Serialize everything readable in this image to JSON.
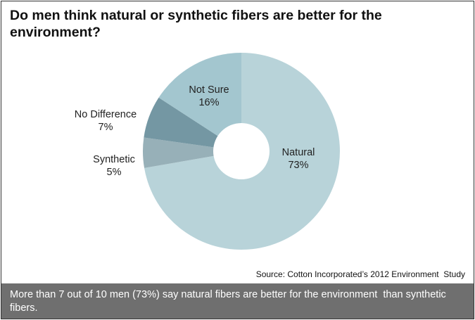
{
  "chart_data": {
    "type": "pie",
    "title": "Do men think natural or synthetic fibers are better for the environment?",
    "slices": [
      {
        "label": "Natural",
        "value": 73,
        "value_label": "73%",
        "color": "#b8d3d9"
      },
      {
        "label": "Synthetic",
        "value": 5,
        "value_label": "5%",
        "color": "#97b0b8"
      },
      {
        "label": "No Difference",
        "value": 7,
        "value_label": "7%",
        "color": "#7497a3"
      },
      {
        "label": "Not Sure",
        "value": 16,
        "value_label": "16%",
        "color": "#a3c6cf"
      }
    ],
    "donut": true,
    "source": "Source: Cotton Incorporated’s 2012 Environment  Study"
  },
  "footer_text": "More than 7 out of 10 men (73%) say natural fibers are better for the environment  than synthetic fibers."
}
